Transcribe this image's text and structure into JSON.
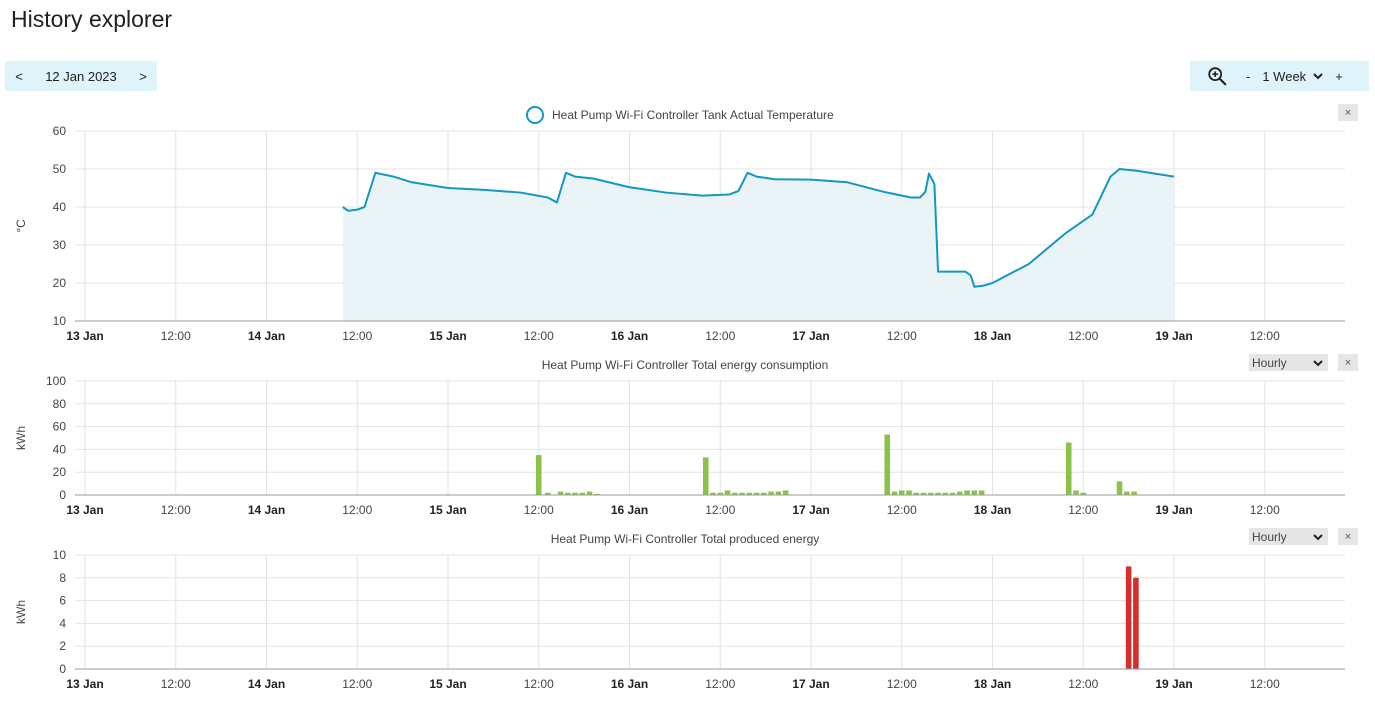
{
  "page": {
    "title": "History explorer"
  },
  "date_nav": {
    "prev": "<",
    "date": "12 Jan 2023",
    "next": ">"
  },
  "zoom_nav": {
    "minus": "-",
    "range": "1 Week",
    "plus": "+"
  },
  "colors": {
    "toolbar_bg": "#dff3fa",
    "temperature": "#1198c4",
    "temperature_fill": "#eaf4f7",
    "consumption": "#8bc34a",
    "produced": "#d32f2f"
  },
  "chart_data": [
    {
      "type": "area",
      "title": "Heat Pump Wi-Fi Controller Tank Actual Temperature",
      "ylabel": "°C",
      "ylim": [
        10,
        60
      ],
      "yticks": [
        "10",
        "20",
        "30",
        "40",
        "50",
        "60"
      ],
      "xticks": [
        "13 Jan",
        "12:00",
        "14 Jan",
        "12:00",
        "15 Jan",
        "12:00",
        "16 Jan",
        "12:00",
        "17 Jan",
        "12:00",
        "18 Jan",
        "12:00",
        "19 Jan",
        "12:00"
      ],
      "grid": true,
      "legend": "top-center",
      "series": [
        {
          "name": "Heat Pump Wi-Fi Controller Tank Actual Temperature",
          "points": [
            [
              1.42,
              40
            ],
            [
              1.45,
              39
            ],
            [
              1.5,
              39.3
            ],
            [
              1.54,
              40
            ],
            [
              1.6,
              49
            ],
            [
              1.7,
              48
            ],
            [
              1.8,
              46.5
            ],
            [
              2.0,
              45
            ],
            [
              2.2,
              44.5
            ],
            [
              2.4,
              43.8
            ],
            [
              2.55,
              42.5
            ],
            [
              2.6,
              41.2
            ],
            [
              2.65,
              49
            ],
            [
              2.7,
              48
            ],
            [
              2.8,
              47.5
            ],
            [
              3.0,
              45.2
            ],
            [
              3.2,
              43.8
            ],
            [
              3.4,
              43
            ],
            [
              3.55,
              43.3
            ],
            [
              3.6,
              44.2
            ],
            [
              3.65,
              49
            ],
            [
              3.7,
              48
            ],
            [
              3.8,
              47.3
            ],
            [
              4.0,
              47.2
            ],
            [
              4.2,
              46.5
            ],
            [
              4.4,
              44
            ],
            [
              4.55,
              42.5
            ],
            [
              4.6,
              42.5
            ],
            [
              4.63,
              44
            ],
            [
              4.65,
              48.8
            ],
            [
              4.68,
              46
            ],
            [
              4.7,
              23
            ],
            [
              4.85,
              23
            ],
            [
              4.88,
              22
            ],
            [
              4.9,
              19
            ],
            [
              4.95,
              19.3
            ],
            [
              5.0,
              20
            ],
            [
              5.2,
              25
            ],
            [
              5.4,
              33
            ],
            [
              5.55,
              38
            ],
            [
              5.6,
              43
            ],
            [
              5.65,
              48
            ],
            [
              5.7,
              50
            ],
            [
              5.8,
              49.5
            ],
            [
              6.0,
              48
            ]
          ]
        }
      ]
    },
    {
      "type": "bar",
      "title": "Heat Pump Wi-Fi Controller Total energy consumption",
      "ylabel": "kWh",
      "ylim": [
        0,
        100
      ],
      "yticks": [
        "0",
        "20",
        "40",
        "60",
        "80",
        "100"
      ],
      "xticks": [
        "13 Jan",
        "12:00",
        "14 Jan",
        "12:00",
        "15 Jan",
        "12:00",
        "16 Jan",
        "12:00",
        "17 Jan",
        "12:00",
        "18 Jan",
        "12:00",
        "19 Jan",
        "12:00"
      ],
      "grid": true,
      "period": "Hourly",
      "series": [
        {
          "name": "Heat Pump Wi-Fi Controller Total energy consumption",
          "points": [
            [
              2.5,
              35
            ],
            [
              2.55,
              2
            ],
            [
              2.62,
              3
            ],
            [
              2.66,
              2
            ],
            [
              2.7,
              2
            ],
            [
              2.74,
              2
            ],
            [
              2.78,
              3
            ],
            [
              2.82,
              1
            ],
            [
              3.42,
              33
            ],
            [
              3.46,
              2
            ],
            [
              3.5,
              2
            ],
            [
              3.54,
              4
            ],
            [
              3.58,
              2
            ],
            [
              3.62,
              2
            ],
            [
              3.66,
              2
            ],
            [
              3.7,
              2
            ],
            [
              3.74,
              2
            ],
            [
              3.78,
              3
            ],
            [
              3.82,
              3
            ],
            [
              3.86,
              4
            ],
            [
              4.42,
              53
            ],
            [
              4.46,
              3
            ],
            [
              4.5,
              4
            ],
            [
              4.54,
              4
            ],
            [
              4.58,
              2
            ],
            [
              4.62,
              2
            ],
            [
              4.66,
              2
            ],
            [
              4.7,
              2
            ],
            [
              4.74,
              2
            ],
            [
              4.78,
              2
            ],
            [
              4.82,
              3
            ],
            [
              4.86,
              4
            ],
            [
              4.9,
              4
            ],
            [
              4.94,
              4
            ],
            [
              5.42,
              46
            ],
            [
              5.46,
              4
            ],
            [
              5.5,
              2
            ],
            [
              5.7,
              12
            ],
            [
              5.74,
              3
            ],
            [
              5.78,
              3
            ]
          ]
        }
      ]
    },
    {
      "type": "bar",
      "title": "Heat Pump Wi-Fi Controller Total produced energy",
      "ylabel": "kWh",
      "ylim": [
        0,
        10
      ],
      "yticks": [
        "0",
        "2",
        "4",
        "6",
        "8",
        "10"
      ],
      "xticks": [
        "13 Jan",
        "12:00",
        "14 Jan",
        "12:00",
        "15 Jan",
        "12:00",
        "16 Jan",
        "12:00",
        "17 Jan",
        "12:00",
        "18 Jan",
        "12:00",
        "19 Jan",
        "12:00"
      ],
      "grid": true,
      "period": "Hourly",
      "series": [
        {
          "name": "Heat Pump Wi-Fi Controller Total produced energy",
          "points": [
            [
              5.75,
              9
            ],
            [
              5.79,
              8
            ]
          ]
        }
      ]
    }
  ],
  "controls": {
    "close": "×"
  }
}
